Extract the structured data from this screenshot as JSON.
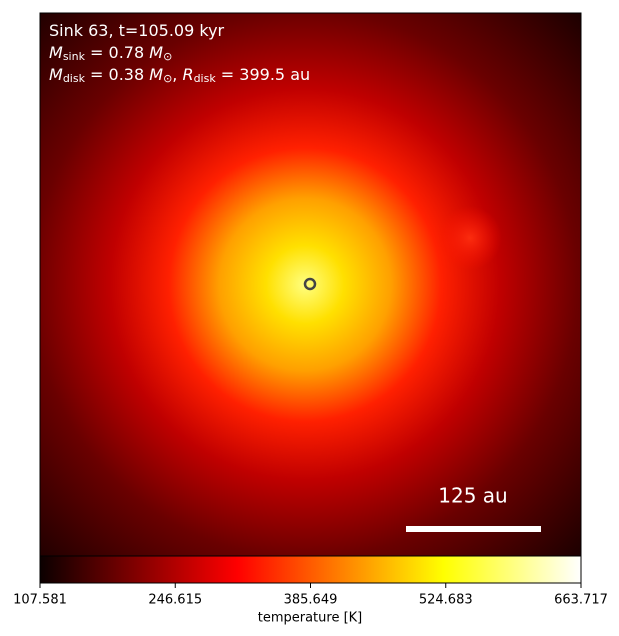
{
  "chart_data": {
    "type": "colormap-image",
    "annotations": [
      [
        {
          "t": "Sink 63, t=105.09 kyr"
        }
      ],
      [
        {
          "t": "M",
          "italic": true
        },
        {
          "t": "sink",
          "sub": true
        },
        {
          "t": " = 0.78 "
        },
        {
          "t": "M",
          "italic": true
        },
        {
          "t": "⊙",
          "sub": true
        }
      ],
      [
        {
          "t": "M",
          "italic": true
        },
        {
          "t": "disk",
          "sub": true
        },
        {
          "t": " = 0.38 "
        },
        {
          "t": "M",
          "italic": true
        },
        {
          "t": "⊙",
          "sub": true
        },
        {
          "t": ", "
        },
        {
          "t": "R",
          "italic": true
        },
        {
          "t": "disk",
          "sub": true
        },
        {
          "t": " = 399.5 au"
        }
      ]
    ],
    "scale_bar_label": "125 au",
    "colorbar": {
      "label": "temperature [K]",
      "clim": [
        107.581,
        663.717
      ],
      "ticks": [
        107.581,
        246.615,
        385.649,
        524.683,
        663.717
      ],
      "colormap": "hot"
    }
  }
}
